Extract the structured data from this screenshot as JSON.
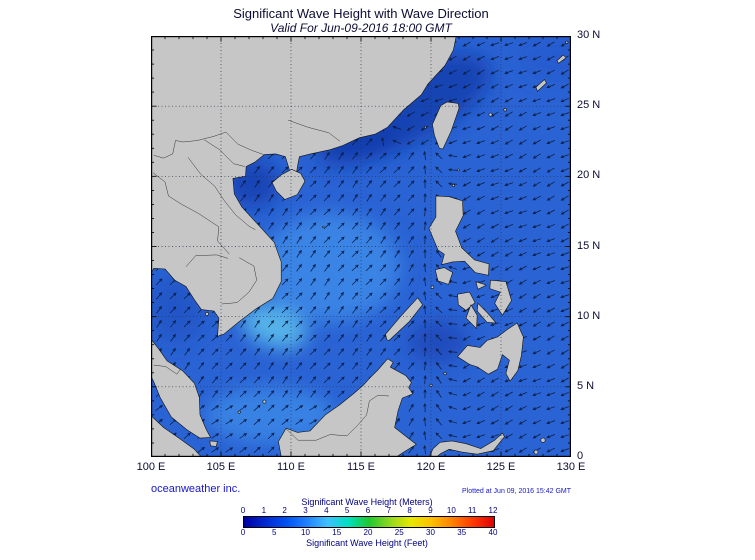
{
  "header": {
    "title": "Significant Wave Height with Wave Direction",
    "subtitle": "Valid For Jun-09-2016 18:00 GMT"
  },
  "axes": {
    "x_ticks": [
      "100 E",
      "105 E",
      "110 E",
      "115 E",
      "120 E",
      "125 E",
      "130 E"
    ],
    "y_ticks": [
      "30 N",
      "25 N",
      "20 N",
      "15 N",
      "10 N",
      "5 N",
      "0"
    ]
  },
  "footer": {
    "credit": "oceanweather inc.",
    "plotted_at": "Plotted at Jun 09, 2016 15:42 GMT"
  },
  "legend": {
    "meters_label": "Significant Wave Height (Meters)",
    "feet_label": "Significant Wave Height (Feet)",
    "meters_ticks": [
      "0",
      "1",
      "2",
      "3",
      "4",
      "5",
      "6",
      "7",
      "8",
      "9",
      "10",
      "11",
      "12"
    ],
    "feet_ticks": [
      "0",
      "5",
      "10",
      "15",
      "20",
      "25",
      "30",
      "35",
      "40"
    ],
    "gradient_colors": [
      "#0000a0",
      "#0028d0",
      "#0050f0",
      "#2080ff",
      "#40c0ff",
      "#00e0c0",
      "#20c830",
      "#90d820",
      "#e8e800",
      "#ffc000",
      "#ff8000",
      "#ff3800",
      "#e00000"
    ],
    "tick_color": "#000080"
  },
  "chart_data": {
    "type": "heatmap",
    "title": "Significant Wave Height with Wave Direction",
    "valid_time": "Jun-09-2016 18:00 GMT",
    "plotted_time": "Jun 09, 2016 15:42 GMT",
    "region": {
      "lon_deg_e": [
        100,
        130
      ],
      "lat_deg_n": [
        0,
        30
      ]
    },
    "grid_interval_deg": 5,
    "color_scale": {
      "top_units": "Meters",
      "top_range": [
        0,
        12
      ],
      "top_ticks": [
        0,
        1,
        2,
        3,
        4,
        5,
        6,
        7,
        8,
        9,
        10,
        11,
        12
      ],
      "bottom_units": "Feet",
      "bottom_range": [
        0,
        40
      ],
      "bottom_ticks": [
        0,
        5,
        10,
        15,
        20,
        25,
        30,
        35,
        40
      ]
    },
    "symbology": {
      "arrows": "wave direction",
      "gray": "land",
      "blue_shades": "wave height"
    },
    "approx_wave_height_meters": {
      "south_china_sea_central": 2,
      "off_south_vietnam": 3,
      "gulf_of_tonkin": 1,
      "pacific_east_of_philippines": 2,
      "east_china_sea_coastal": 1,
      "sulu_sea": 1
    }
  }
}
